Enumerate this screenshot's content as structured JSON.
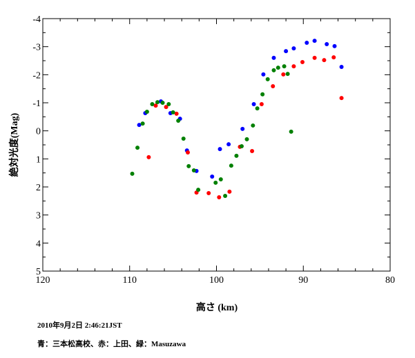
{
  "chart_data": {
    "type": "scatter",
    "xlabel": "高さ (km)",
    "ylabel": "絶対光度(Mag)",
    "xlim": [
      120,
      80
    ],
    "ylim": [
      -4,
      5
    ],
    "x_ticks": [
      120,
      110,
      100,
      90,
      80
    ],
    "y_ticks": [
      -4,
      -3,
      -2,
      -1,
      0,
      1,
      2,
      3,
      4,
      5
    ],
    "x_tick_labels": [
      "120",
      "110",
      "100",
      "90",
      "80"
    ],
    "y_tick_labels": [
      "-4",
      "-3",
      "-2",
      "-1",
      "0",
      "1",
      "2",
      "3",
      "4",
      "5"
    ],
    "grid": false,
    "series": [
      {
        "name": "青：三本松高校",
        "color": "#0000ff",
        "x": [
          108.9,
          108.2,
          106.4,
          105.3,
          104.2,
          103.4,
          102.3,
          100.5,
          99.6,
          98.6,
          97.0,
          95.7,
          94.6,
          93.4,
          92.0,
          91.1,
          89.6,
          88.7,
          87.3,
          86.4,
          85.6
        ],
        "y": [
          -0.21,
          -0.63,
          -1.05,
          -0.63,
          -0.43,
          0.7,
          1.43,
          1.63,
          0.65,
          0.48,
          -0.07,
          -0.95,
          -2.01,
          -2.6,
          -2.84,
          -2.94,
          -3.14,
          -3.21,
          -3.09,
          -3.02,
          -2.28
        ]
      },
      {
        "name": "赤：上田",
        "color": "#ff0000",
        "x": [
          107.8,
          107.0,
          105.8,
          104.6,
          103.3,
          102.3,
          100.9,
          99.7,
          98.5,
          97.3,
          95.9,
          94.8,
          93.5,
          92.3,
          91.1,
          90.1,
          88.7,
          87.6,
          86.5,
          85.6
        ],
        "y": [
          0.94,
          -0.9,
          -0.85,
          -0.61,
          0.77,
          2.2,
          2.22,
          2.37,
          2.17,
          0.57,
          0.72,
          -0.95,
          -1.59,
          -2.01,
          -2.3,
          -2.45,
          -2.6,
          -2.52,
          -2.62,
          -1.17
        ]
      },
      {
        "name": "緑：Masuzawa",
        "color": "#008000",
        "x": [
          109.7,
          109.1,
          108.5,
          108.0,
          107.4,
          106.8,
          106.2,
          105.5,
          105.0,
          104.4,
          103.8,
          103.2,
          102.6,
          102.1,
          100.1,
          99.5,
          99.0,
          98.3,
          97.7,
          97.1,
          96.5,
          95.8,
          95.3,
          94.7,
          94.1,
          93.4,
          92.9,
          92.2,
          91.8,
          91.4
        ],
        "y": [
          1.53,
          0.6,
          -0.26,
          -0.68,
          -0.95,
          -1.02,
          -1.0,
          -0.95,
          -0.66,
          -0.36,
          0.28,
          1.26,
          1.41,
          2.1,
          1.85,
          1.73,
          2.32,
          1.24,
          0.89,
          0.55,
          0.3,
          -0.19,
          -0.8,
          -1.3,
          -1.84,
          -2.16,
          -2.25,
          -2.3,
          -2.03,
          0.03
        ]
      }
    ]
  },
  "notes": {
    "datetime": "2010年9月2日 2:46:21JST",
    "legend": "青：三本松高校、赤：上田、緑：Masuzawa"
  }
}
